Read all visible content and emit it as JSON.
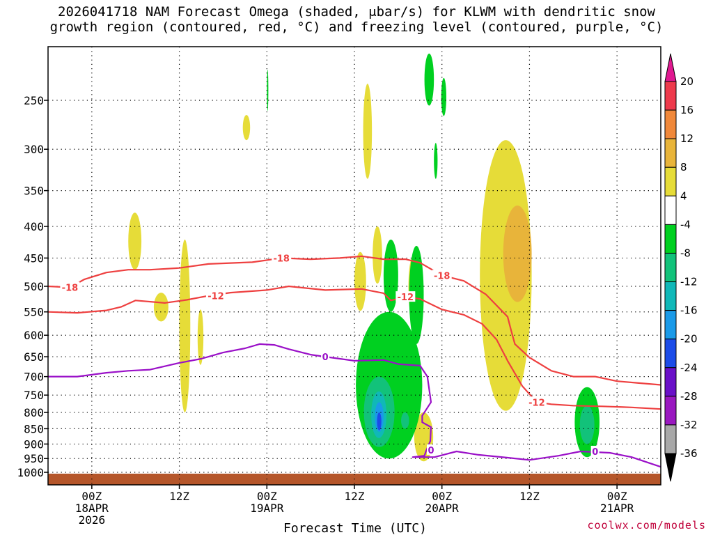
{
  "title_line1": "2026041718 NAM Forecast Omega (shaded, μbar/s) for KLWM with dendritic snow",
  "title_line2": "growth region (contoured, red, °C) and freezing level (contoured, purple, °C)",
  "credit": "coolwx.com/models",
  "chart_data": {
    "type": "heatmap",
    "title": "2026041718 NAM Forecast Omega (shaded, μbar/s) for KLWM with dendritic snow growth region (contoured, red, °C) and freezing level (contoured, purple, °C)",
    "xlabel": "Forecast Time (UTC)",
    "ylabel": "",
    "x_range_hours": [
      -6,
      78
    ],
    "y_range": [
      1050,
      200
    ],
    "y_scale": "log",
    "grid": true,
    "y_ticks": [
      250,
      300,
      350,
      400,
      450,
      500,
      550,
      600,
      650,
      700,
      750,
      800,
      850,
      900,
      950,
      1000
    ],
    "x_ticks": [
      {
        "hour": 0,
        "line1": "00Z",
        "line2": "18APR",
        "line3": "2026"
      },
      {
        "hour": 12,
        "line1": "12Z",
        "line2": "",
        "line3": ""
      },
      {
        "hour": 24,
        "line1": "00Z",
        "line2": "19APR",
        "line3": ""
      },
      {
        "hour": 36,
        "line1": "12Z",
        "line2": "",
        "line3": ""
      },
      {
        "hour": 48,
        "line1": "00Z",
        "line2": "20APR",
        "line3": ""
      },
      {
        "hour": 60,
        "line1": "12Z",
        "line2": "",
        "line3": ""
      },
      {
        "hour": 72,
        "line1": "00Z",
        "line2": "21APR",
        "line3": ""
      }
    ],
    "colorbar": {
      "labels": [
        "20",
        "16",
        "12",
        "8",
        "4",
        "-4",
        "-8",
        "-12",
        "-16",
        "-20",
        "-24",
        "-28",
        "-32",
        "-36"
      ],
      "colors": [
        "#ee3a4c",
        "#f0883a",
        "#e8b43a",
        "#e6dc38",
        "#ffffff",
        "#00d020",
        "#12c27a",
        "#10b8b8",
        "#1a9ae8",
        "#1c4ce8",
        "#6a10c8",
        "#9a18c0",
        "#a8a8a8"
      ],
      "top_arrow_color": "#e01890",
      "bottom_arrow_color": "#000000"
    },
    "contours": [
      {
        "name": "-18",
        "color": "#ee4040",
        "label": "-18",
        "points": [
          [
            -6,
            500
          ],
          [
            -3,
            502
          ],
          [
            -1,
            487
          ],
          [
            2,
            475
          ],
          [
            5,
            470
          ],
          [
            8,
            470
          ],
          [
            12,
            467
          ],
          [
            16,
            460
          ],
          [
            22,
            457
          ],
          [
            26,
            450
          ],
          [
            30,
            452
          ],
          [
            34,
            450
          ],
          [
            37,
            447
          ],
          [
            40,
            452
          ],
          [
            43,
            452
          ],
          [
            45,
            458
          ],
          [
            48,
            480
          ],
          [
            51,
            490
          ],
          [
            54,
            515
          ],
          [
            57,
            560
          ],
          [
            57.5,
            590
          ],
          [
            58,
            620
          ],
          [
            60,
            652
          ],
          [
            63,
            685
          ],
          [
            66,
            700
          ],
          [
            69,
            700
          ],
          [
            72,
            712
          ],
          [
            75,
            717
          ],
          [
            78,
            722
          ]
        ],
        "label_at": [
          [
            -3,
            502
          ],
          [
            26,
            450
          ],
          [
            48,
            480
          ]
        ]
      },
      {
        "name": "-12",
        "color": "#ee4040",
        "label": "-12",
        "points": [
          [
            -6,
            550
          ],
          [
            -2,
            552
          ],
          [
            2,
            547
          ],
          [
            4,
            540
          ],
          [
            6,
            527
          ],
          [
            10,
            532
          ],
          [
            13,
            526
          ],
          [
            16,
            518
          ],
          [
            19,
            512
          ],
          [
            24,
            507
          ],
          [
            27,
            500
          ],
          [
            32,
            507
          ],
          [
            37,
            505
          ],
          [
            40,
            513
          ],
          [
            41,
            527
          ],
          [
            43,
            520
          ],
          [
            45,
            524
          ],
          [
            48,
            545
          ],
          [
            51,
            556
          ],
          [
            53.5,
            575
          ],
          [
            55.5,
            610
          ],
          [
            57,
            660
          ],
          [
            59,
            725
          ],
          [
            61,
            770
          ],
          [
            63,
            776
          ],
          [
            66,
            780
          ],
          [
            70,
            782
          ],
          [
            74,
            785
          ],
          [
            78,
            790
          ]
        ],
        "label_at": [
          [
            17,
            518
          ],
          [
            43,
            520
          ],
          [
            61,
            770
          ]
        ]
      },
      {
        "name": "0",
        "color": "#9a10c8",
        "label": "0",
        "points": [
          [
            -6,
            700
          ],
          [
            -2,
            700
          ],
          [
            2,
            690
          ],
          [
            5,
            685
          ],
          [
            8,
            682
          ],
          [
            12,
            665
          ],
          [
            15,
            655
          ],
          [
            18,
            640
          ],
          [
            21,
            630
          ],
          [
            23,
            620
          ],
          [
            25,
            622
          ],
          [
            27,
            632
          ],
          [
            30,
            645
          ],
          [
            32,
            650
          ],
          [
            36,
            660
          ],
          [
            40,
            658
          ],
          [
            42,
            668
          ],
          [
            45,
            672
          ],
          [
            46,
            700
          ],
          [
            46.5,
            770
          ],
          [
            45.3,
            810
          ],
          [
            45.3,
            830
          ],
          [
            46.5,
            845
          ],
          [
            46.4,
            890
          ],
          [
            45.8,
            925
          ],
          [
            45.6,
            940
          ],
          [
            44,
            945
          ],
          [
            47,
            945
          ],
          [
            50,
            925
          ],
          [
            53,
            937
          ],
          [
            57,
            947
          ],
          [
            60,
            955
          ],
          [
            64,
            940
          ],
          [
            67,
            925
          ],
          [
            71,
            930
          ],
          [
            74,
            945
          ],
          [
            78,
            980
          ]
        ],
        "label_at": [
          [
            32,
            650
          ],
          [
            46.5,
            920
          ],
          [
            69,
            925
          ]
        ]
      }
    ],
    "shaded_regions": [
      {
        "value_range": [
          4,
          8
        ],
        "color": "#e6dc38",
        "hours": [
          5,
          6.8
        ],
        "pressure": [
          380,
          470
        ]
      },
      {
        "value_range": [
          4,
          8
        ],
        "color": "#e6dc38",
        "hours": [
          8.5,
          10.5
        ],
        "pressure": [
          512,
          570
        ]
      },
      {
        "value_range": [
          4,
          8
        ],
        "color": "#e6dc38",
        "hours": [
          12,
          13.5
        ],
        "pressure": [
          420,
          800
        ]
      },
      {
        "value_range": [
          4,
          8
        ],
        "color": "#e6dc38",
        "hours": [
          14.5,
          15.3
        ],
        "pressure": [
          545,
          670
        ]
      },
      {
        "value_range": [
          4,
          8
        ],
        "color": "#e6dc38",
        "hours": [
          20.7,
          21.7
        ],
        "pressure": [
          264,
          290
        ]
      },
      {
        "value_range": [
          4,
          8
        ],
        "color": "#e6dc38",
        "hours": [
          37.2,
          38.4
        ],
        "pressure": [
          235,
          335
        ]
      },
      {
        "value_range": [
          4,
          8
        ],
        "color": "#e6dc38",
        "hours": [
          36,
          37.6
        ],
        "pressure": [
          440,
          548
        ]
      },
      {
        "value_range": [
          4,
          8
        ],
        "color": "#e6dc38",
        "hours": [
          38.5,
          39.8
        ],
        "pressure": [
          400,
          495
        ]
      },
      {
        "value_range": [
          4,
          8
        ],
        "color": "#e6dc38",
        "hours": [
          43.4,
          44.5
        ],
        "pressure": [
          450,
          560
        ]
      },
      {
        "value_range": [
          4,
          8
        ],
        "color": "#e6dc38",
        "hours": [
          44.2,
          46.8
        ],
        "pressure": [
          800,
          960
        ]
      },
      {
        "value_range": [
          4,
          8
        ],
        "color": "#e6dc38",
        "hours": [
          53.2,
          60.3
        ],
        "pressure": [
          290,
          795
        ]
      },
      {
        "value_range": [
          8,
          12
        ],
        "color": "#e8b43a",
        "hours": [
          56.4,
          60.3
        ],
        "pressure": [
          370,
          530
        ]
      },
      {
        "value_range": [
          -8,
          -4
        ],
        "color": "#00d020",
        "hours": [
          24,
          24.2
        ],
        "pressure": [
          223,
          260
        ]
      },
      {
        "value_range": [
          -8,
          -4
        ],
        "color": "#00d020",
        "hours": [
          45.6,
          46.9
        ],
        "pressure": [
          210,
          255
        ]
      },
      {
        "value_range": [
          -8,
          -4
        ],
        "color": "#00d020",
        "hours": [
          47.9,
          48.6
        ],
        "pressure": [
          230,
          265
        ]
      },
      {
        "value_range": [
          -8,
          -4
        ],
        "color": "#00d020",
        "hours": [
          46.9,
          47.4
        ],
        "pressure": [
          293,
          335
        ]
      },
      {
        "value_range": [
          -8,
          -4
        ],
        "color": "#00d020",
        "hours": [
          40,
          42
        ],
        "pressure": [
          420,
          550
        ]
      },
      {
        "value_range": [
          -8,
          -4
        ],
        "color": "#00d020",
        "hours": [
          43.5,
          45.5
        ],
        "pressure": [
          430,
          620
        ]
      },
      {
        "value_range": [
          -8,
          -4
        ],
        "color": "#00d020",
        "hours": [
          36.2,
          45.3
        ],
        "pressure": [
          550,
          950
        ]
      },
      {
        "value_range": [
          -8,
          -4
        ],
        "color": "#00d020",
        "hours": [
          66.2,
          69.6
        ],
        "pressure": [
          728,
          945
        ]
      },
      {
        "value_range": [
          -12,
          -8
        ],
        "color": "#12c27a",
        "hours": [
          37.3,
          41.5
        ],
        "pressure": [
          700,
          910
        ]
      },
      {
        "value_range": [
          -12,
          -8
        ],
        "color": "#12c27a",
        "hours": [
          66.9,
          68.9
        ],
        "pressure": [
          780,
          900
        ]
      },
      {
        "value_range": [
          -12,
          -8
        ],
        "color": "#12c27a",
        "hours": [
          42.4,
          43.5
        ],
        "pressure": [
          800,
          850
        ]
      },
      {
        "value_range": [
          -16,
          -12
        ],
        "color": "#10b8b8",
        "hours": [
          38.3,
          40.4
        ],
        "pressure": [
          740,
          880
        ]
      },
      {
        "value_range": [
          -20,
          -16
        ],
        "color": "#1a9ae8",
        "hours": [
          38.8,
          40
        ],
        "pressure": [
          770,
          860
        ]
      },
      {
        "value_range": [
          -24,
          -20
        ],
        "color": "#1c4ce8",
        "hours": [
          39.1,
          39.7
        ],
        "pressure": [
          800,
          855
        ]
      }
    ],
    "terrain": {
      "color": "#b5562a",
      "pressure_top": 1005,
      "pressure_bottom": 1050
    }
  }
}
